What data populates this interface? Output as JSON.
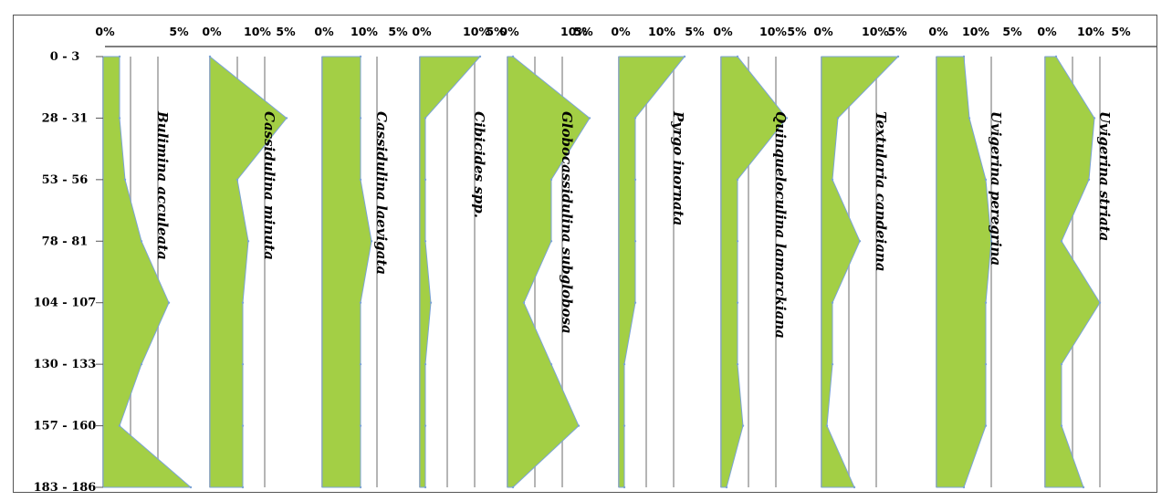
{
  "chart_data": {
    "type": "area",
    "orientation": "vertical-depth-profile",
    "depth_labels": [
      "0 - 3",
      "28 - 31",
      "53 - 56",
      "78 - 81",
      "104 - 107",
      "130 - 133",
      "157 - 160",
      "183 - 186"
    ],
    "x_ticks": [
      "0%",
      "5%",
      "10%"
    ],
    "xlim": [
      0,
      12
    ],
    "grid": true,
    "fill_color": "#a3cf45",
    "edge_color": "#7ba3d6",
    "grid_color": "#b5b5b5",
    "series": [
      {
        "name": "Bulimina acculeata",
        "values": [
          3,
          3,
          4,
          7,
          12,
          7,
          3,
          16
        ]
      },
      {
        "name": "Cassidulina minuta",
        "values": [
          0,
          14,
          5,
          7,
          6,
          6,
          6,
          6
        ]
      },
      {
        "name": "Cassidulina laevigata",
        "values": [
          7,
          7,
          7,
          9,
          7,
          7,
          7,
          7
        ]
      },
      {
        "name": "Cibicides spp.",
        "values": [
          11,
          1,
          1,
          1,
          2,
          1,
          1,
          1
        ]
      },
      {
        "name": "Globocassidulina subglobosa",
        "values": [
          1,
          15,
          8,
          8,
          3,
          8,
          13,
          1
        ]
      },
      {
        "name": "Pyrgo inornata",
        "values": [
          12,
          3,
          3,
          3,
          3,
          1,
          1,
          1
        ]
      },
      {
        "name": "Quinqueloculina lamarckiana",
        "values": [
          3,
          12,
          3,
          3,
          3,
          3,
          4,
          1
        ]
      },
      {
        "name": "Textularia candeiana",
        "values": [
          14,
          3,
          2,
          7,
          2,
          2,
          1,
          6
        ]
      },
      {
        "name": "Uvigerina peregrina",
        "values": [
          5,
          6,
          9,
          10,
          9,
          9,
          9,
          5
        ]
      },
      {
        "name": "Uvigerina striata",
        "values": [
          2,
          9,
          8,
          3,
          10,
          3,
          3,
          7
        ]
      }
    ]
  }
}
